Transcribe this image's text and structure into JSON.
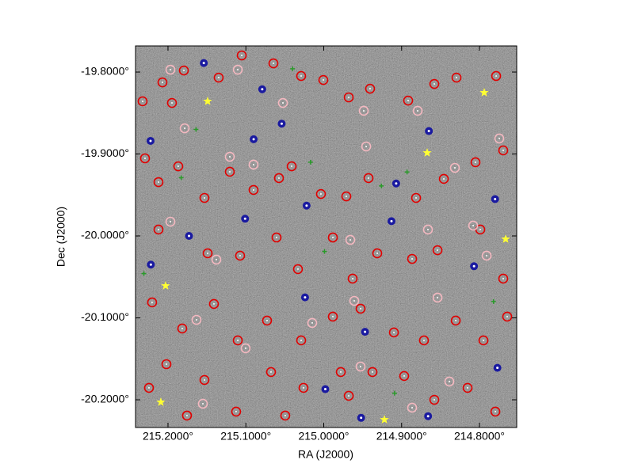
{
  "chart_data": {
    "type": "scatter",
    "x_label": "RA (J2000)",
    "y_label": "Dec (J2000)",
    "xlim": [
      215.2417,
      214.7522
    ],
    "ylim": [
      -19.7681,
      -20.2338
    ],
    "xticks": [
      {
        "value": 215.2,
        "label": "215.2000°"
      },
      {
        "value": 215.1,
        "label": "215.1000°"
      },
      {
        "value": 215.0,
        "label": "215.0000°"
      },
      {
        "value": 214.9,
        "label": "214.9000°"
      },
      {
        "value": 214.8,
        "label": "214.8000°"
      }
    ],
    "yticks": [
      {
        "value": -19.8,
        "label": "-19.8000°"
      },
      {
        "value": -19.9,
        "label": "-19.9000°"
      },
      {
        "value": -20.0,
        "label": "-20.0000°"
      },
      {
        "value": -20.1,
        "label": "-20.1000°"
      },
      {
        "value": -20.2,
        "label": "-20.2000°"
      }
    ],
    "series": [
      {
        "color": "#e00000",
        "marker": "circle",
        "x": [
          215.2326,
          215.2071,
          215.1949,
          215.1796,
          215.1349,
          215.1053,
          215.0646,
          215.029,
          215.0005,
          214.9679,
          214.9405,
          214.8916,
          214.858,
          214.8295,
          214.7786,
          215.2295,
          215.2122,
          215.1868,
          215.1532,
          215.1206,
          215.0901,
          215.0575,
          215.0412,
          215.0036,
          214.971,
          214.9425,
          214.8814,
          214.8458,
          214.8051,
          214.7695,
          215.2122,
          215.1491,
          215.1074,
          215.0606,
          215.0331,
          214.9883,
          214.9629,
          214.9313,
          214.8865,
          214.8539,
          214.799,
          214.7695,
          215.2204,
          215.1817,
          215.141,
          215.1104,
          215.0728,
          215.029,
          214.9883,
          214.9527,
          214.9099,
          214.8713,
          214.8305,
          214.7949,
          214.7644,
          215.202,
          215.1532,
          215.1125,
          215.0677,
          215.026,
          214.9781,
          214.9374,
          214.8967,
          214.858,
          214.8153,
          214.7796,
          215.2244,
          215.1756,
          215.0494,
          214.9679
        ],
        "y": [
          -19.8357,
          -19.8126,
          -19.8377,
          -19.7981,
          -19.8068,
          -19.7797,
          -19.7894,
          -19.8048,
          -19.8097,
          -19.8309,
          -19.8203,
          -19.8348,
          -19.8145,
          -19.8068,
          -19.8048,
          -19.9053,
          -19.9343,
          -19.915,
          -19.9536,
          -19.9217,
          -19.9439,
          -19.9294,
          -19.915,
          -19.9488,
          -19.9517,
          -19.9294,
          -19.9536,
          -19.9304,
          -19.9101,
          -19.8956,
          -19.9922,
          -20.0212,
          -20.0241,
          -20.0019,
          -20.0405,
          -20.0019,
          -20.0521,
          -20.0212,
          -20.028,
          -20.0174,
          -19.9922,
          -20.0521,
          -20.0811,
          -20.113,
          -20.083,
          -20.1275,
          -20.1033,
          -20.1275,
          -20.0985,
          -20.0888,
          -20.1178,
          -20.1275,
          -20.1033,
          -20.1275,
          -20.0985,
          -20.1565,
          -20.1758,
          -20.2144,
          -20.1661,
          -20.1854,
          -20.1661,
          -20.1661,
          -20.1709,
          -20.2,
          -20.1854,
          -20.2144,
          -20.1854,
          -20.2192,
          -20.2192,
          -20.1951
        ]
      },
      {
        "color": "#f4b8c0",
        "marker": "circle",
        "x": [
          215.1969,
          215.1104,
          215.0524,
          214.9486,
          214.8794,
          214.7746,
          215.1786,
          215.1206,
          215.0901,
          214.9455,
          214.8316,
          214.9659,
          214.8662,
          214.8081,
          215.1379,
          215.1969,
          214.8539,
          214.9608,
          215.0148,
          215.1634,
          214.9527,
          214.8865,
          214.8387,
          215.1552,
          215.1003,
          214.7908
        ],
        "y": [
          -19.7971,
          -19.7971,
          -19.8377,
          -19.8473,
          -19.8473,
          -19.8811,
          -19.8686,
          -19.9034,
          -19.913,
          -19.8908,
          -19.9169,
          -20.0048,
          -19.9922,
          -19.9874,
          -20.0289,
          -19.9826,
          -20.0753,
          -20.0792,
          -20.1062,
          -20.1024,
          -20.1594,
          -20.2096,
          -20.1777,
          -20.2048,
          -20.1371,
          -20.0241
        ]
      },
      {
        "color": "#1a1aa0",
        "marker": "dot",
        "x": [
          215.2224,
          215.154,
          215.079,
          215.054,
          215.09,
          215.173,
          215.222,
          215.101,
          215.022,
          214.913,
          214.865,
          214.907,
          214.78,
          214.807,
          215.024,
          214.947,
          214.998,
          214.866,
          214.952,
          214.777
        ],
        "y": [
          -19.884,
          -19.789,
          -19.821,
          -19.863,
          -19.882,
          -20.0,
          -20.035,
          -19.979,
          -19.963,
          -19.982,
          -19.872,
          -19.936,
          -19.955,
          -20.037,
          -20.075,
          -20.117,
          -20.187,
          -20.22,
          -20.222,
          -20.161
        ]
      },
      {
        "color": "#2a9a2a",
        "marker": "plus",
        "x": [
          215.164,
          215.183,
          215.04,
          215.017,
          214.999,
          214.926,
          214.893,
          214.909,
          215.231,
          214.782
        ],
        "y": [
          -19.87,
          -19.929,
          -19.796,
          -19.91,
          -20.019,
          -19.939,
          -19.922,
          -20.192,
          -20.046,
          -20.08
        ]
      },
      {
        "color": "#ffff33",
        "marker": "star",
        "x": [
          215.1491,
          214.7939,
          214.8672,
          214.7664,
          215.2031,
          215.2092,
          214.9221
        ],
        "y": [
          -19.8357,
          -19.8251,
          -19.8986,
          -20.0039,
          -20.0609,
          -20.2029,
          -20.2242
        ]
      }
    ]
  }
}
